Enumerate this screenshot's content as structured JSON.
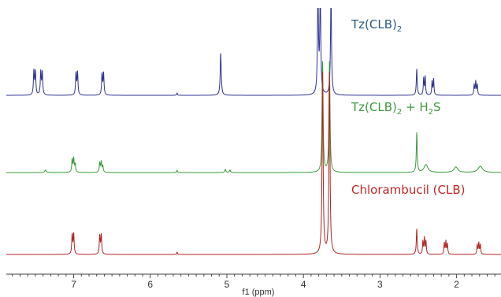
{
  "chart_data": {
    "type": "line",
    "title": "",
    "xlabel": "f1 (ppm)",
    "ylabel": "",
    "xlim": [
      7.88,
      1.42
    ],
    "x_reversed": true,
    "grid": false,
    "legend": "labels placed beside each spectrum",
    "ticks": [
      {
        "value": 7,
        "label": "7"
      },
      {
        "value": 6,
        "label": "6"
      },
      {
        "value": 5,
        "label": "5"
      },
      {
        "value": 4,
        "label": "4"
      },
      {
        "value": 3,
        "label": "3"
      },
      {
        "value": 2,
        "label": "2"
      }
    ],
    "series": [
      {
        "key": "tz",
        "label_main": "Tz(CLB)",
        "label_sub": "2",
        "label_main2": "",
        "label_sub2": "",
        "label_tail": "",
        "color": "#2e3192",
        "label_color": "#2b5c8a",
        "peaks": [
          {
            "ppm": 7.52,
            "h": 30,
            "w": 0.007
          },
          {
            "ppm": 7.5,
            "h": 29,
            "w": 0.007
          },
          {
            "ppm": 7.43,
            "h": 29,
            "w": 0.007
          },
          {
            "ppm": 7.41,
            "h": 28,
            "w": 0.007
          },
          {
            "ppm": 6.97,
            "h": 27,
            "w": 0.007
          },
          {
            "ppm": 6.95,
            "h": 28,
            "w": 0.007
          },
          {
            "ppm": 6.63,
            "h": 26,
            "w": 0.007
          },
          {
            "ppm": 6.61,
            "h": 27,
            "w": 0.007
          },
          {
            "ppm": 5.65,
            "h": 3,
            "w": 0.006
          },
          {
            "ppm": 5.08,
            "h": 53,
            "w": 0.008
          },
          {
            "ppm": 3.81,
            "h": 125,
            "w": 0.008
          },
          {
            "ppm": 3.78,
            "h": 125,
            "w": 0.008
          },
          {
            "ppm": 3.64,
            "h": 125,
            "w": 0.008
          },
          {
            "ppm": 2.52,
            "h": 33,
            "w": 0.007
          },
          {
            "ppm": 2.43,
            "h": 21,
            "w": 0.006
          },
          {
            "ppm": 2.41,
            "h": 23,
            "w": 0.006
          },
          {
            "ppm": 2.32,
            "h": 17,
            "w": 0.006
          },
          {
            "ppm": 2.3,
            "h": 20,
            "w": 0.006
          },
          {
            "ppm": 1.77,
            "h": 13,
            "w": 0.006
          },
          {
            "ppm": 1.75,
            "h": 17,
            "w": 0.006
          },
          {
            "ppm": 1.73,
            "h": 13,
            "w": 0.006
          }
        ]
      },
      {
        "key": "h2s",
        "label_main": "Tz(CLB)",
        "label_sub": "2",
        "label_main2": " + H",
        "label_sub2": "2",
        "label_tail": "S",
        "color": "#3a9a3a",
        "label_color": "#3f9a3f",
        "peaks": [
          {
            "ppm": 7.37,
            "h": 3,
            "w": 0.01
          },
          {
            "ppm": 7.02,
            "h": 16,
            "w": 0.007
          },
          {
            "ppm": 7.0,
            "h": 17,
            "w": 0.007
          },
          {
            "ppm": 6.98,
            "h": 10,
            "w": 0.007
          },
          {
            "ppm": 6.66,
            "h": 12,
            "w": 0.007
          },
          {
            "ppm": 6.64,
            "h": 13,
            "w": 0.007
          },
          {
            "ppm": 6.62,
            "h": 8,
            "w": 0.007
          },
          {
            "ppm": 5.65,
            "h": 3,
            "w": 0.006
          },
          {
            "ppm": 5.02,
            "h": 4,
            "w": 0.008
          },
          {
            "ppm": 4.96,
            "h": 3,
            "w": 0.008
          },
          {
            "ppm": 3.75,
            "h": 140,
            "w": 0.008
          },
          {
            "ppm": 3.66,
            "h": 140,
            "w": 0.008
          },
          {
            "ppm": 2.52,
            "h": 50,
            "w": 0.007
          },
          {
            "ppm": 2.4,
            "h": 10,
            "w": 0.03
          },
          {
            "ppm": 2.01,
            "h": 7,
            "w": 0.03
          },
          {
            "ppm": 1.69,
            "h": 8,
            "w": 0.035
          }
        ]
      },
      {
        "key": "clb",
        "label_main": "Chlorambucil (CLB)",
        "label_sub": "",
        "label_main2": "",
        "label_sub2": "",
        "label_tail": "",
        "color": "#b22222",
        "label_color": "#c62828",
        "peaks": [
          {
            "ppm": 7.02,
            "h": 24,
            "w": 0.007
          },
          {
            "ppm": 7.0,
            "h": 25,
            "w": 0.007
          },
          {
            "ppm": 6.66,
            "h": 23,
            "w": 0.007
          },
          {
            "ppm": 6.64,
            "h": 24,
            "w": 0.007
          },
          {
            "ppm": 5.65,
            "h": 3,
            "w": 0.006
          },
          {
            "ppm": 3.75,
            "h": 230,
            "w": 0.008
          },
          {
            "ppm": 3.66,
            "h": 230,
            "w": 0.008
          },
          {
            "ppm": 2.52,
            "h": 32,
            "w": 0.007
          },
          {
            "ppm": 2.44,
            "h": 16,
            "w": 0.006
          },
          {
            "ppm": 2.42,
            "h": 20,
            "w": 0.006
          },
          {
            "ppm": 2.4,
            "h": 16,
            "w": 0.006
          },
          {
            "ppm": 2.16,
            "h": 14,
            "w": 0.006
          },
          {
            "ppm": 2.14,
            "h": 16,
            "w": 0.006
          },
          {
            "ppm": 2.12,
            "h": 13,
            "w": 0.006
          },
          {
            "ppm": 1.73,
            "h": 12,
            "w": 0.006
          },
          {
            "ppm": 1.71,
            "h": 14,
            "w": 0.006
          },
          {
            "ppm": 1.69,
            "h": 12,
            "w": 0.006
          }
        ]
      }
    ]
  }
}
